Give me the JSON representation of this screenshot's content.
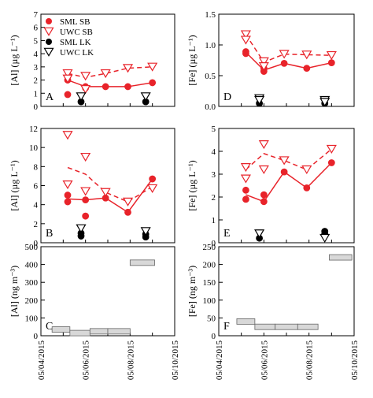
{
  "figure": {
    "x_ticks": [
      "05/04/2015",
      "05/06/2015",
      "05/08/2015",
      "05/10/2015"
    ],
    "colors": {
      "sb": "#e8232a",
      "lk": "#000000",
      "bar_fill": "#d8d8d8",
      "bar_stroke": "#666666"
    }
  },
  "chart_data": [
    {
      "id": "A",
      "type": "scatter",
      "panel_letter": "A",
      "ylabel": "[Al] (µg L⁻¹)",
      "ylim": [
        0,
        7
      ],
      "yticks": [
        0,
        1,
        2,
        3,
        4,
        5,
        6,
        7
      ],
      "xlim": [
        0,
        6
      ],
      "legend": {
        "position": "top-left",
        "entries": [
          {
            "label": "SML SB",
            "marker": "filled-circle",
            "color": "#e8232a"
          },
          {
            "label": "UWC SB",
            "marker": "open-triangle",
            "color": "#e8232a"
          },
          {
            "label": "SML LK",
            "marker": "filled-circle",
            "color": "#000000"
          },
          {
            "label": "UWC LK",
            "marker": "open-triangle",
            "color": "#000000"
          }
        ]
      },
      "series": [
        {
          "name": "SML SB",
          "marker": "filled-circle",
          "color": "#e8232a",
          "line": "solid",
          "x": [
            1.2,
            1.2,
            2.0,
            2.0,
            2.9,
            3.9,
            5.0
          ],
          "y": [
            0.9,
            2.0,
            1.4,
            1.5,
            1.5,
            1.5,
            1.8
          ],
          "line_x": [
            1.2,
            2.0,
            2.9,
            3.9,
            5.0
          ],
          "line_y": [
            2.0,
            1.5,
            1.5,
            1.5,
            1.8
          ]
        },
        {
          "name": "UWC SB",
          "marker": "open-triangle",
          "color": "#e8232a",
          "line": "dashed",
          "x": [
            1.2,
            1.2,
            2.0,
            2.0,
            2.9,
            3.9,
            5.0
          ],
          "y": [
            2.5,
            2.1,
            2.3,
            1.3,
            2.5,
            2.9,
            3.0
          ],
          "line_x": [
            1.2,
            2.0,
            2.9,
            3.9,
            5.0
          ],
          "line_y": [
            2.5,
            2.2,
            2.5,
            2.9,
            3.0
          ]
        },
        {
          "name": "SML LK",
          "marker": "filled-circle",
          "color": "#000000",
          "line": "none",
          "x": [
            1.8,
            4.7
          ],
          "y": [
            0.35,
            0.35
          ]
        },
        {
          "name": "UWC LK",
          "marker": "open-triangle",
          "color": "#000000",
          "line": "none",
          "x": [
            1.8,
            4.7
          ],
          "y": [
            0.75,
            0.75
          ]
        }
      ]
    },
    {
      "id": "D",
      "type": "scatter",
      "panel_letter": "D",
      "ylabel": "[Fe] (µg L⁻¹)",
      "ylim": [
        0,
        1.5
      ],
      "yticks": [
        0.0,
        0.5,
        1.0,
        1.5
      ],
      "xlim": [
        0,
        6
      ],
      "series": [
        {
          "name": "SML SB",
          "marker": "filled-circle",
          "color": "#e8232a",
          "line": "solid",
          "x": [
            1.2,
            1.2,
            2.0,
            2.0,
            2.9,
            3.9,
            5.0
          ],
          "y": [
            0.86,
            0.89,
            0.62,
            0.57,
            0.7,
            0.62,
            0.71
          ],
          "line_x": [
            1.2,
            2.0,
            2.9,
            3.9,
            5.0
          ],
          "line_y": [
            0.88,
            0.59,
            0.7,
            0.62,
            0.71
          ]
        },
        {
          "name": "UWC SB",
          "marker": "open-triangle",
          "color": "#e8232a",
          "line": "dashed",
          "x": [
            1.2,
            1.2,
            2.0,
            2.0,
            2.9,
            3.9,
            5.0
          ],
          "y": [
            1.17,
            1.08,
            0.73,
            0.65,
            0.85,
            0.84,
            0.83
          ],
          "line_x": [
            1.2,
            2.0,
            2.9,
            3.9,
            5.0
          ],
          "line_y": [
            1.17,
            0.72,
            0.85,
            0.84,
            0.83
          ]
        },
        {
          "name": "SML LK",
          "marker": "filled-circle",
          "color": "#000000",
          "line": "none",
          "x": [
            1.8,
            4.7
          ],
          "y": [
            0.05,
            0.05
          ]
        },
        {
          "name": "UWC LK",
          "marker": "open-triangle",
          "color": "#000000",
          "line": "none",
          "x": [
            1.8,
            1.8,
            4.7,
            4.7
          ],
          "y": [
            0.13,
            0.1,
            0.1,
            0.07
          ]
        }
      ]
    },
    {
      "id": "B",
      "type": "scatter",
      "panel_letter": "B",
      "ylabel": "[Al] (µg L⁻¹)",
      "ylim": [
        0,
        12
      ],
      "yticks": [
        0,
        2,
        4,
        6,
        8,
        10,
        12
      ],
      "xlim": [
        0,
        6
      ],
      "series": [
        {
          "name": "SML SB",
          "marker": "filled-circle",
          "color": "#e8232a",
          "line": "solid",
          "x": [
            1.2,
            1.2,
            2.0,
            2.0,
            2.9,
            3.9,
            5.0
          ],
          "y": [
            5.0,
            4.3,
            4.5,
            2.8,
            4.7,
            3.2,
            6.7
          ],
          "line_x": [
            1.2,
            2.0,
            2.9,
            3.9,
            5.0
          ],
          "line_y": [
            4.6,
            4.5,
            4.7,
            3.2,
            6.7
          ]
        },
        {
          "name": "UWC SB",
          "marker": "open-triangle",
          "color": "#e8232a",
          "line": "dashed",
          "x": [
            1.2,
            1.2,
            2.0,
            2.0,
            2.9,
            3.9,
            5.0
          ],
          "y": [
            11.3,
            6.1,
            9.0,
            5.4,
            5.3,
            4.3,
            5.7
          ],
          "line_x": [
            1.2,
            2.0,
            2.9,
            3.9,
            5.0
          ],
          "line_y": [
            7.9,
            7.2,
            5.3,
            4.3,
            5.9
          ]
        },
        {
          "name": "SML LK",
          "marker": "filled-circle",
          "color": "#000000",
          "line": "none",
          "x": [
            1.8,
            1.8,
            4.7,
            4.7
          ],
          "y": [
            1.0,
            0.7,
            0.9,
            0.6
          ]
        },
        {
          "name": "UWC LK",
          "marker": "open-triangle",
          "color": "#000000",
          "line": "none",
          "x": [
            1.8,
            4.7
          ],
          "y": [
            1.5,
            1.2
          ]
        }
      ]
    },
    {
      "id": "E",
      "type": "scatter",
      "panel_letter": "E",
      "ylabel": "[Fe] (µg L⁻¹)",
      "ylim": [
        0,
        5
      ],
      "yticks": [
        0,
        1,
        2,
        3,
        4,
        5
      ],
      "xlim": [
        0,
        6
      ],
      "series": [
        {
          "name": "SML SB",
          "marker": "filled-circle",
          "color": "#e8232a",
          "line": "solid",
          "x": [
            1.2,
            1.2,
            2.0,
            2.0,
            2.9,
            3.9,
            5.0
          ],
          "y": [
            2.3,
            1.9,
            2.1,
            1.8,
            3.1,
            2.4,
            3.5
          ],
          "line_x": [
            1.2,
            2.0,
            2.9,
            3.9,
            5.0
          ],
          "line_y": [
            2.1,
            1.8,
            3.1,
            2.4,
            3.5
          ]
        },
        {
          "name": "UWC SB",
          "marker": "open-triangle",
          "color": "#e8232a",
          "line": "dashed",
          "x": [
            1.2,
            1.2,
            2.0,
            2.0,
            2.9,
            3.9,
            5.0
          ],
          "y": [
            3.3,
            2.8,
            4.3,
            3.2,
            3.6,
            3.2,
            4.1
          ],
          "line_x": [
            1.2,
            2.0,
            2.9,
            3.9,
            5.0
          ],
          "line_y": [
            3.2,
            3.9,
            3.6,
            3.2,
            4.1
          ]
        },
        {
          "name": "SML LK",
          "marker": "filled-circle",
          "color": "#000000",
          "line": "none",
          "x": [
            1.8,
            4.7,
            4.7
          ],
          "y": [
            0.2,
            0.5,
            0.4
          ]
        },
        {
          "name": "UWC LK",
          "marker": "open-triangle",
          "color": "#000000",
          "line": "none",
          "x": [
            1.8,
            4.7
          ],
          "y": [
            0.4,
            0.2
          ]
        }
      ]
    },
    {
      "id": "C",
      "type": "bar",
      "panel_letter": "C",
      "ylabel": "[Al] (ng m⁻³)",
      "ylim": [
        0,
        500
      ],
      "yticks": [
        0,
        100,
        200,
        300,
        400,
        500
      ],
      "xlim": [
        0,
        6
      ],
      "bars": [
        {
          "x_start": 0.5,
          "x_end": 1.3,
          "value": 35
        },
        {
          "x_start": 1.3,
          "x_end": 2.2,
          "value": 15
        },
        {
          "x_start": 2.2,
          "x_end": 3.0,
          "value": 25
        },
        {
          "x_start": 3.0,
          "x_end": 4.0,
          "value": 25
        },
        {
          "x_start": 4.0,
          "x_end": 5.1,
          "value": 410
        }
      ]
    },
    {
      "id": "F",
      "type": "bar",
      "panel_letter": "F",
      "ylabel": "[Fe] (ng m⁻³)",
      "ylim": [
        0,
        250
      ],
      "yticks": [
        0,
        50,
        100,
        150,
        200,
        250
      ],
      "xlim": [
        0,
        6
      ],
      "bars": [
        {
          "x_start": 0.8,
          "x_end": 1.6,
          "value": 40
        },
        {
          "x_start": 1.6,
          "x_end": 2.5,
          "value": 25
        },
        {
          "x_start": 2.5,
          "x_end": 3.5,
          "value": 25
        },
        {
          "x_start": 3.5,
          "x_end": 4.4,
          "value": 25
        },
        {
          "x_start": 4.9,
          "x_end": 5.9,
          "value": 220
        }
      ]
    }
  ]
}
